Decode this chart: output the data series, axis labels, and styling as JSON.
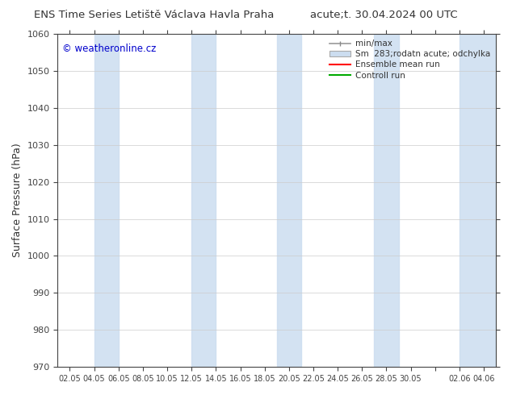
{
  "title_left": "ENS Time Series Letiště Václava Havla Praha",
  "title_right": "acute;t. 30.04.2024 00 UTC",
  "ylabel": "Surface Pressure (hPa)",
  "ylim": [
    970,
    1060
  ],
  "yticks": [
    970,
    980,
    990,
    1000,
    1010,
    1020,
    1030,
    1040,
    1050,
    1060
  ],
  "xtick_positions": [
    0,
    1,
    2,
    3,
    4,
    5,
    6,
    7,
    8,
    9,
    10,
    11,
    12,
    13,
    14,
    15,
    16,
    17
  ],
  "xtick_labels": [
    "02.05",
    "04.05",
    "06.05",
    "08.05",
    "10.05",
    "12.05",
    "14.05",
    "16.05",
    "18.05",
    "20.05",
    "22.05",
    "24.05",
    "26.05",
    "28.05",
    "30.05",
    "",
    "02.06",
    "04.06"
  ],
  "watermark": "© weatheronline.cz",
  "watermark_color": "#0000cc",
  "bg_color": "#ffffff",
  "plot_bg_color": "#ffffff",
  "band_color": "#ccddf0",
  "band_alpha": 0.85,
  "band_x_positions": [
    1.5,
    2.5,
    5.5,
    6.5,
    8.5,
    9.5,
    12.5,
    13.5,
    16.5,
    17.5
  ],
  "band_widths": [
    1.0,
    1.0,
    1.0,
    1.0,
    1.0,
    1.0,
    1.0,
    1.0,
    0.5,
    0.5
  ],
  "legend_labels": [
    "min/max",
    "Sm  283;rodatn acute; odchylka",
    "Ensemble mean run",
    "Controll run"
  ],
  "legend_colors": [
    "#aaaaaa",
    "#ccddf0",
    "#ff0000",
    "#00aa00"
  ],
  "grid_color": "#cccccc",
  "tick_color": "#444444",
  "font_color": "#333333",
  "x_min": 0,
  "x_max": 17
}
